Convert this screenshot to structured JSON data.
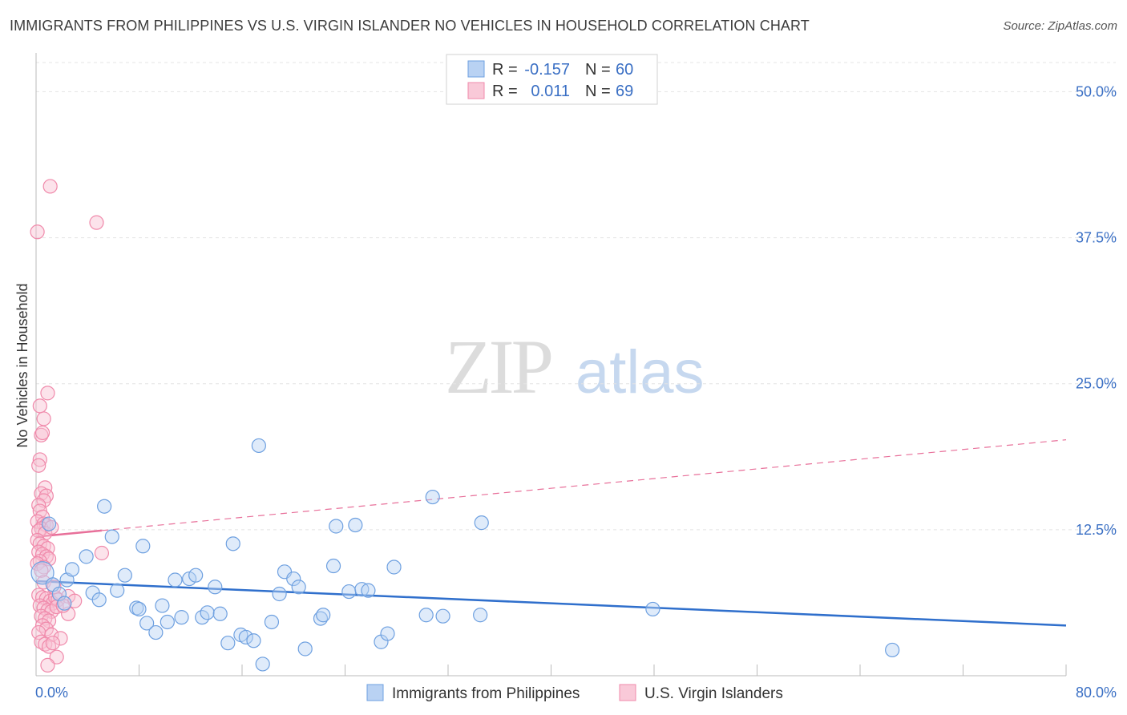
{
  "title": "IMMIGRANTS FROM PHILIPPINES VS U.S. VIRGIN ISLANDER NO VEHICLES IN HOUSEHOLD CORRELATION CHART",
  "source": "Source: ZipAtlas.com",
  "watermark": {
    "zip": "ZIP",
    "atlas": "atlas"
  },
  "colors": {
    "blue": "#6ea0e0",
    "blue_line": "#2f6fcc",
    "pink": "#f08aab",
    "pink_line": "#e8709a",
    "tick_text": "#3a6fc4"
  },
  "chart_data": {
    "type": "scatter",
    "xlabel": "",
    "ylabel": "No Vehicles in Household",
    "xlim": [
      0,
      80
    ],
    "ylim": [
      0,
      52.5
    ],
    "x_tick_labels": [
      "0.0%",
      "80.0%"
    ],
    "y_ticks": [
      12.5,
      25.0,
      37.5,
      50.0
    ],
    "y_tick_labels": [
      "12.5%",
      "25.0%",
      "37.5%",
      "50.0%"
    ],
    "grid": true,
    "legend": {
      "position": "top-center",
      "entries": [
        {
          "r_label": "R =",
          "r_value": "-0.157",
          "n_label": "N =",
          "n_value": "60"
        },
        {
          "r_label": "R =",
          "r_value": "0.011",
          "n_label": "N =",
          "n_value": "69"
        }
      ]
    },
    "series": [
      {
        "name": "Immigrants from Philippines",
        "color": "#6ea0e0",
        "trend": {
          "x": [
            0,
            80
          ],
          "y": [
            8.1,
            4.3
          ],
          "style": "solid"
        },
        "points": [
          {
            "x": 0.5,
            "y": 8.8,
            "big": true
          },
          {
            "x": 1.0,
            "y": 13.0
          },
          {
            "x": 1.3,
            "y": 7.8
          },
          {
            "x": 1.8,
            "y": 7.0
          },
          {
            "x": 2.2,
            "y": 6.2
          },
          {
            "x": 2.4,
            "y": 8.2
          },
          {
            "x": 2.8,
            "y": 9.1
          },
          {
            "x": 3.9,
            "y": 10.2
          },
          {
            "x": 4.4,
            "y": 7.1
          },
          {
            "x": 4.9,
            "y": 6.5
          },
          {
            "x": 5.3,
            "y": 14.5
          },
          {
            "x": 5.9,
            "y": 11.9
          },
          {
            "x": 6.3,
            "y": 7.3
          },
          {
            "x": 6.9,
            "y": 8.6
          },
          {
            "x": 7.8,
            "y": 5.8
          },
          {
            "x": 8.0,
            "y": 5.7
          },
          {
            "x": 8.3,
            "y": 11.1
          },
          {
            "x": 8.6,
            "y": 4.5
          },
          {
            "x": 9.3,
            "y": 3.7
          },
          {
            "x": 9.8,
            "y": 6.0
          },
          {
            "x": 10.2,
            "y": 4.6
          },
          {
            "x": 10.8,
            "y": 8.2
          },
          {
            "x": 11.3,
            "y": 5.0
          },
          {
            "x": 11.9,
            "y": 8.3
          },
          {
            "x": 12.4,
            "y": 8.6
          },
          {
            "x": 12.9,
            "y": 5.0
          },
          {
            "x": 13.3,
            "y": 5.4
          },
          {
            "x": 13.9,
            "y": 7.6
          },
          {
            "x": 14.3,
            "y": 5.3
          },
          {
            "x": 14.9,
            "y": 2.8
          },
          {
            "x": 15.3,
            "y": 11.3
          },
          {
            "x": 15.9,
            "y": 3.5
          },
          {
            "x": 16.3,
            "y": 3.3
          },
          {
            "x": 16.9,
            "y": 3.0
          },
          {
            "x": 17.3,
            "y": 19.7
          },
          {
            "x": 17.6,
            "y": 1.0
          },
          {
            "x": 18.3,
            "y": 4.6
          },
          {
            "x": 18.9,
            "y": 7.0
          },
          {
            "x": 19.3,
            "y": 8.9
          },
          {
            "x": 20.0,
            "y": 8.3
          },
          {
            "x": 20.4,
            "y": 7.6
          },
          {
            "x": 20.9,
            "y": 2.3
          },
          {
            "x": 22.1,
            "y": 4.9
          },
          {
            "x": 22.3,
            "y": 5.2
          },
          {
            "x": 23.1,
            "y": 9.4
          },
          {
            "x": 23.3,
            "y": 12.8
          },
          {
            "x": 24.3,
            "y": 7.2
          },
          {
            "x": 24.8,
            "y": 12.9
          },
          {
            "x": 25.3,
            "y": 7.4
          },
          {
            "x": 25.8,
            "y": 7.3
          },
          {
            "x": 26.8,
            "y": 2.9
          },
          {
            "x": 27.3,
            "y": 3.6
          },
          {
            "x": 27.8,
            "y": 9.3
          },
          {
            "x": 30.3,
            "y": 5.2
          },
          {
            "x": 30.8,
            "y": 15.3
          },
          {
            "x": 31.6,
            "y": 5.1
          },
          {
            "x": 34.5,
            "y": 5.2
          },
          {
            "x": 34.6,
            "y": 13.1
          },
          {
            "x": 47.9,
            "y": 5.7
          },
          {
            "x": 66.5,
            "y": 2.2
          }
        ]
      },
      {
        "name": "U.S. Virgin Islanders",
        "color": "#f08aab",
        "trend": {
          "x": [
            0,
            80
          ],
          "y": [
            11.9,
            20.2
          ],
          "solid_to_x": 5.1,
          "style": "dashed"
        },
        "points": [
          {
            "x": 0.1,
            "y": 38.0
          },
          {
            "x": 1.1,
            "y": 41.9
          },
          {
            "x": 4.7,
            "y": 38.8
          },
          {
            "x": 0.3,
            "y": 23.1
          },
          {
            "x": 0.6,
            "y": 22.0
          },
          {
            "x": 0.4,
            "y": 20.6
          },
          {
            "x": 0.5,
            "y": 20.8
          },
          {
            "x": 0.3,
            "y": 18.5
          },
          {
            "x": 0.2,
            "y": 18.0
          },
          {
            "x": 0.9,
            "y": 24.2
          },
          {
            "x": 0.7,
            "y": 16.1
          },
          {
            "x": 0.4,
            "y": 15.6
          },
          {
            "x": 0.8,
            "y": 15.4
          },
          {
            "x": 0.6,
            "y": 15.0
          },
          {
            "x": 0.2,
            "y": 14.6
          },
          {
            "x": 0.3,
            "y": 14.1
          },
          {
            "x": 0.5,
            "y": 13.6
          },
          {
            "x": 0.1,
            "y": 13.2
          },
          {
            "x": 0.6,
            "y": 13.0
          },
          {
            "x": 0.8,
            "y": 12.9
          },
          {
            "x": 0.4,
            "y": 12.6
          },
          {
            "x": 0.2,
            "y": 12.4
          },
          {
            "x": 0.7,
            "y": 12.2
          },
          {
            "x": 1.2,
            "y": 12.7
          },
          {
            "x": 0.1,
            "y": 11.6
          },
          {
            "x": 0.3,
            "y": 11.3
          },
          {
            "x": 0.6,
            "y": 11.1
          },
          {
            "x": 0.9,
            "y": 10.9
          },
          {
            "x": 0.2,
            "y": 10.6
          },
          {
            "x": 0.5,
            "y": 10.4
          },
          {
            "x": 0.8,
            "y": 10.2
          },
          {
            "x": 1.0,
            "y": 10.0
          },
          {
            "x": 0.3,
            "y": 9.8
          },
          {
            "x": 0.1,
            "y": 9.6
          },
          {
            "x": 0.6,
            "y": 9.3
          },
          {
            "x": 0.4,
            "y": 9.0
          },
          {
            "x": 5.1,
            "y": 10.5
          },
          {
            "x": 0.2,
            "y": 6.9
          },
          {
            "x": 0.5,
            "y": 6.7
          },
          {
            "x": 0.8,
            "y": 6.6
          },
          {
            "x": 1.1,
            "y": 6.4
          },
          {
            "x": 1.3,
            "y": 6.2
          },
          {
            "x": 1.5,
            "y": 6.7
          },
          {
            "x": 1.7,
            "y": 6.5
          },
          {
            "x": 0.3,
            "y": 6.0
          },
          {
            "x": 0.6,
            "y": 5.8
          },
          {
            "x": 0.9,
            "y": 5.6
          },
          {
            "x": 1.2,
            "y": 5.5
          },
          {
            "x": 1.6,
            "y": 5.9
          },
          {
            "x": 2.5,
            "y": 6.8
          },
          {
            "x": 0.4,
            "y": 5.1
          },
          {
            "x": 0.7,
            "y": 4.9
          },
          {
            "x": 1.0,
            "y": 4.7
          },
          {
            "x": 2.5,
            "y": 5.3
          },
          {
            "x": 0.5,
            "y": 4.3
          },
          {
            "x": 0.8,
            "y": 4.0
          },
          {
            "x": 0.2,
            "y": 3.7
          },
          {
            "x": 1.2,
            "y": 3.5
          },
          {
            "x": 1.9,
            "y": 3.2
          },
          {
            "x": 0.4,
            "y": 2.9
          },
          {
            "x": 0.7,
            "y": 2.7
          },
          {
            "x": 1.0,
            "y": 2.5
          },
          {
            "x": 1.3,
            "y": 2.8
          },
          {
            "x": 1.6,
            "y": 1.6
          },
          {
            "x": 0.9,
            "y": 0.9
          },
          {
            "x": 3.0,
            "y": 6.4
          },
          {
            "x": 2.1,
            "y": 6.0
          },
          {
            "x": 0.6,
            "y": 8.0
          },
          {
            "x": 1.4,
            "y": 7.6
          }
        ]
      }
    ]
  }
}
